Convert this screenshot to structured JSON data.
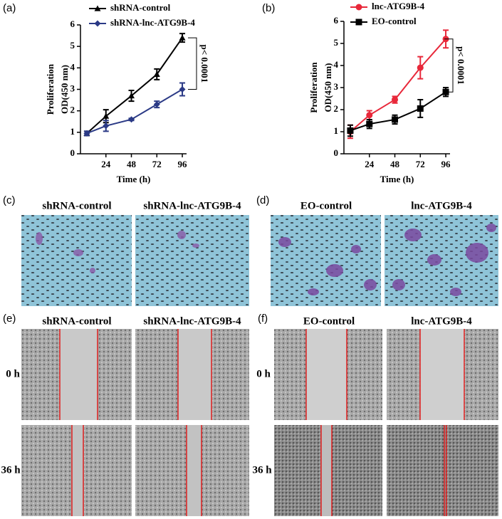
{
  "chart_data": [
    {
      "type": "line",
      "panel_label": "(a)",
      "ylabel": [
        "Proliferation",
        "OD(450 nm)"
      ],
      "xlabel": "Time (h)",
      "annotation": "p< 0.0001",
      "x": [
        6,
        24,
        48,
        72,
        96
      ],
      "xlim": [
        0,
        100
      ],
      "xticks": [
        24,
        48,
        72,
        96
      ],
      "ylim": [
        0,
        6
      ],
      "yticks": [
        0,
        1,
        2,
        3,
        4,
        5,
        6
      ],
      "legend": "upper left",
      "series": [
        {
          "name": "shRNA-control",
          "color": "#000000",
          "marker": "triangle",
          "values": [
            0.95,
            1.75,
            2.7,
            3.7,
            5.4
          ],
          "error": [
            0.1,
            0.3,
            0.25,
            0.25,
            0.2
          ]
        },
        {
          "name": "shRNA-lnc-ATG9B-4",
          "color": "#2b3a86",
          "marker": "diamond",
          "values": [
            0.95,
            1.3,
            1.6,
            2.3,
            3.0
          ],
          "error": [
            0.1,
            0.25,
            0.05,
            0.15,
            0.3
          ]
        }
      ]
    },
    {
      "type": "line",
      "panel_label": "(b)",
      "ylabel": [
        "Proliferation",
        "OD(450 nm)"
      ],
      "xlabel": "Time (h)",
      "annotation": "p< 0.0001",
      "x": [
        6,
        24,
        48,
        72,
        96
      ],
      "xlim": [
        0,
        100
      ],
      "xticks": [
        24,
        48,
        72,
        96
      ],
      "ylim": [
        0,
        6
      ],
      "yticks": [
        0,
        1,
        2,
        3,
        4,
        5,
        6
      ],
      "legend": "upper left",
      "series": [
        {
          "name": "lnc-ATG9B-4",
          "color": "#e8283a",
          "marker": "circle",
          "values": [
            1.0,
            1.75,
            2.45,
            3.9,
            5.2
          ],
          "error": [
            0.3,
            0.2,
            0.15,
            0.5,
            0.4
          ]
        },
        {
          "name": "EO-control",
          "color": "#000000",
          "marker": "square",
          "values": [
            1.05,
            1.35,
            1.55,
            2.05,
            2.8
          ],
          "error": [
            0.25,
            0.2,
            0.2,
            0.4,
            0.2
          ]
        }
      ]
    }
  ],
  "panels": [
    {
      "label": "(c)",
      "columns": [
        "shRNA-control",
        "shRNA-lnc-ATG9B-4"
      ]
    },
    {
      "label": "(d)",
      "columns": [
        "EO-control",
        "lnc-ATG9B-4"
      ]
    },
    {
      "label": "(e)",
      "columns": [
        "shRNA-control",
        "shRNA-lnc-ATG9B-4"
      ],
      "rows": [
        "0 h",
        "36 h"
      ]
    },
    {
      "label": "(f)",
      "columns": [
        "EO-control",
        "lnc-ATG9B-4"
      ],
      "rows": [
        "0 h",
        "36 h"
      ]
    }
  ]
}
